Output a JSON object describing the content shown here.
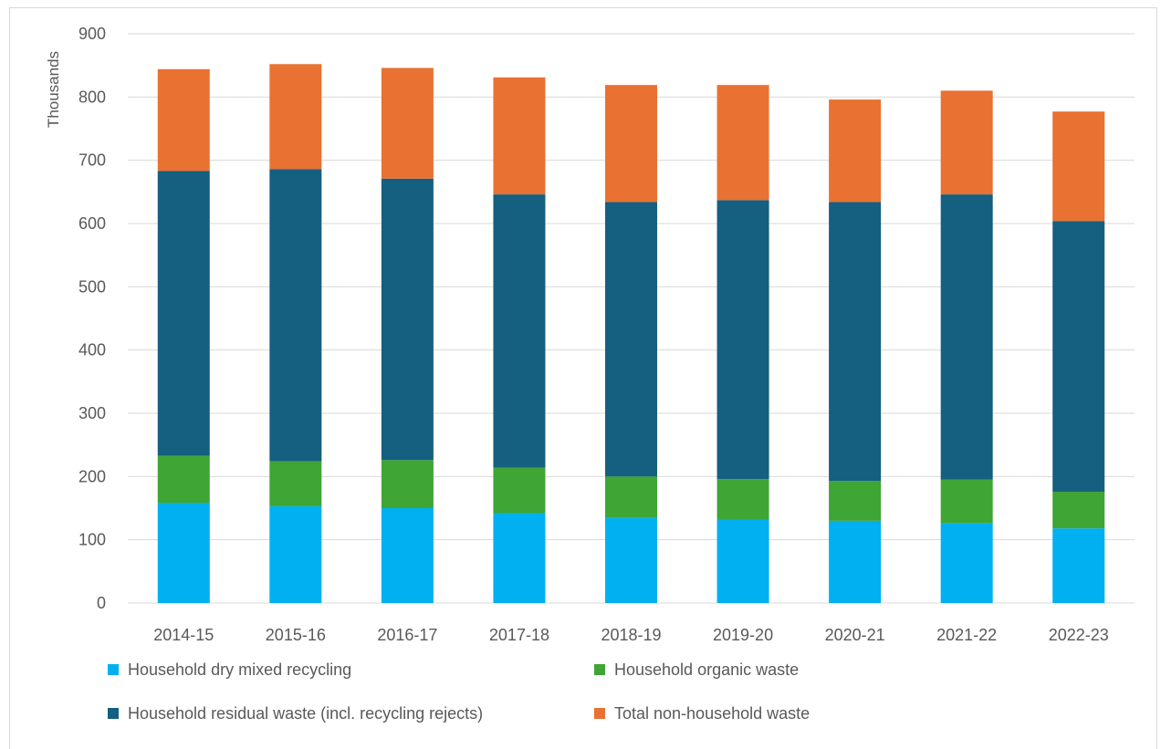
{
  "chart_data": {
    "type": "bar",
    "stacked": true,
    "title": "",
    "xlabel": "",
    "ylabel": "Thousands",
    "ylim": [
      0,
      900
    ],
    "yticks": [
      0,
      100,
      200,
      300,
      400,
      500,
      600,
      700,
      800,
      900
    ],
    "grid": true,
    "legend_position": "bottom",
    "categories": [
      "2014-15",
      "2015-16",
      "2016-17",
      "2017-18",
      "2018-19",
      "2019-20",
      "2020-21",
      "2021-22",
      "2022-23"
    ],
    "series": [
      {
        "name": "Household dry mixed recycling",
        "color": "#00b0f0",
        "values": [
          158,
          153,
          150,
          142,
          135,
          132,
          130,
          126,
          118
        ]
      },
      {
        "name": "Household organic waste",
        "color": "#3fa535",
        "values": [
          75,
          71,
          76,
          72,
          65,
          64,
          63,
          69,
          58
        ]
      },
      {
        "name": "Household residual waste (incl. recycling rejects)",
        "color": "#155f80",
        "values": [
          450,
          462,
          445,
          432,
          434,
          441,
          441,
          451,
          428
        ]
      },
      {
        "name": "Total non-household waste",
        "color": "#e97132",
        "values": [
          161,
          166,
          175,
          185,
          185,
          182,
          162,
          164,
          173
        ]
      }
    ]
  }
}
